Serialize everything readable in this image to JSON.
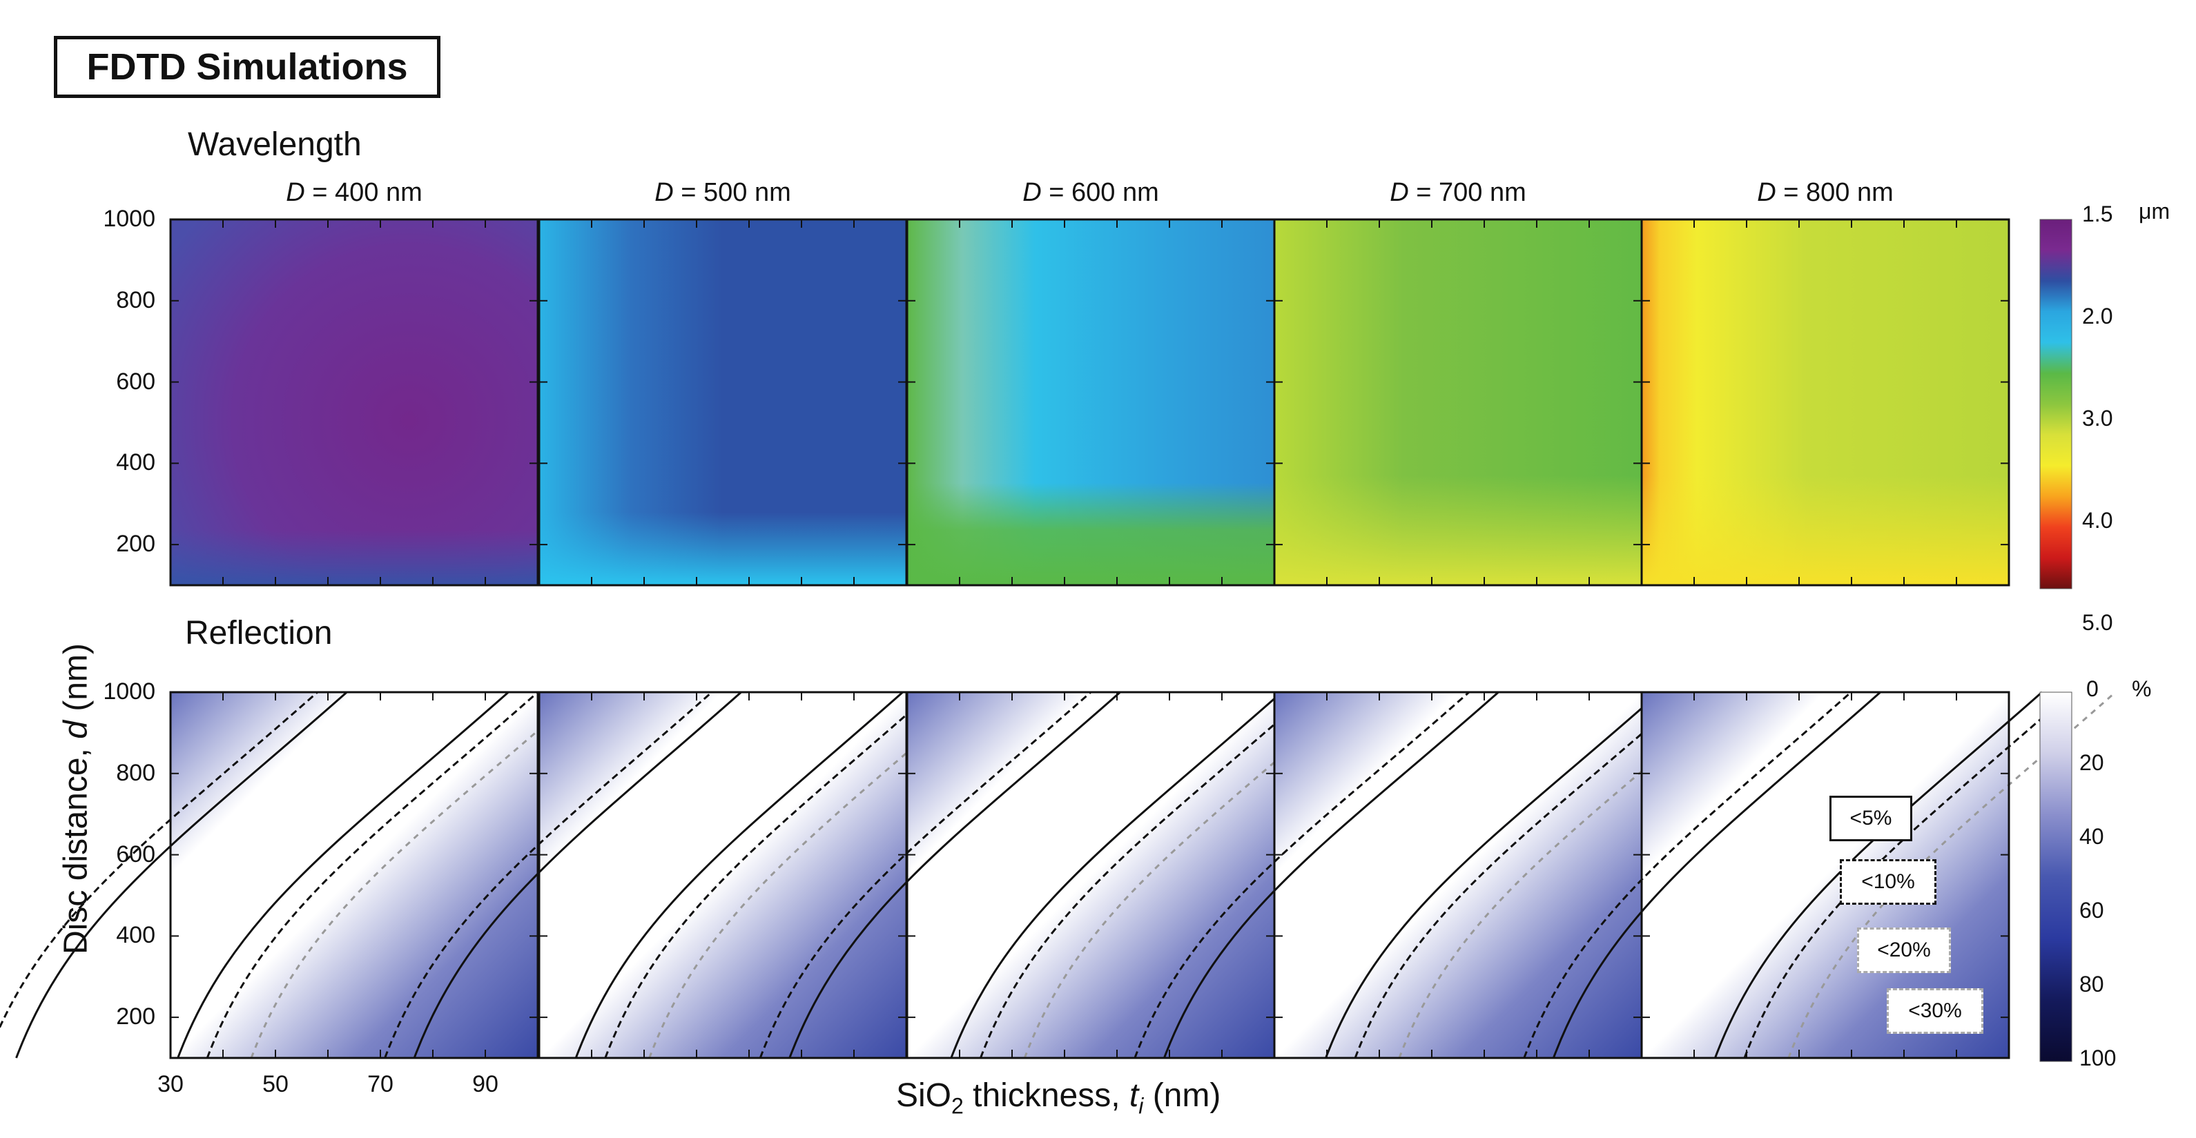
{
  "figure_title": "FDTD Simulations",
  "rows": {
    "top_label": "Wavelength",
    "bottom_label": "Reflection"
  },
  "panels": [
    {
      "symbol": "D",
      "text": " = 400 nm"
    },
    {
      "symbol": "D",
      "text": " = 500 nm"
    },
    {
      "symbol": "D",
      "text": " = 600 nm"
    },
    {
      "symbol": "D",
      "text": " = 700 nm"
    },
    {
      "symbol": "D",
      "text": " = 800 nm"
    }
  ],
  "y_axis": {
    "label_text": "Disc distance, ",
    "label_symbol": "d",
    "label_unit": " (nm)",
    "ticks": [
      "1000",
      "800",
      "600",
      "400",
      "200"
    ],
    "ylim": [
      100,
      1000
    ]
  },
  "x_axis": {
    "label_pre": "SiO",
    "label_sub": "2",
    "label_mid": " thickness, ",
    "label_symbol": "t",
    "label_symbol_sub": "i",
    "label_unit": " (nm)",
    "ticks": [
      "30",
      "50",
      "70",
      "90"
    ],
    "xlim": [
      30,
      100
    ]
  },
  "colorbars": {
    "wavelength": {
      "unit": "μm",
      "ticks": [
        "1.5",
        "2.0",
        "3.0",
        "4.0",
        "5.0"
      ],
      "stops": [
        "#6b1f7c",
        "#7a2a90",
        "#2e4fa2",
        "#2ba6e0",
        "#2fc0e8",
        "#5ab947",
        "#8cc63f",
        "#d8e03a",
        "#f5ec2c",
        "#f8a51e",
        "#f0421e",
        "#cc1a1a",
        "#6b1010"
      ]
    },
    "reflection": {
      "unit": "%",
      "ticks": [
        "0",
        "20",
        "40",
        "60",
        "80",
        "100"
      ],
      "stops": [
        "#ffffff",
        "#cfcfe8",
        "#8a8fcc",
        "#4858b0",
        "#2b3aa0",
        "#141a5c",
        "#0a0a30"
      ]
    }
  },
  "legend": [
    "<5%",
    "<10%",
    "<20%",
    "<30%"
  ],
  "chart_data": [
    {
      "type": "heatmap",
      "title": "Wavelength",
      "quantity": "resonance wavelength (μm)",
      "xlabel": "SiO2 thickness, t_i (nm)",
      "ylabel": "Disc distance, d (nm)",
      "xlim": [
        30,
        100
      ],
      "ylim": [
        100,
        1000
      ],
      "panels": [
        {
          "D": "400 nm",
          "approx_wavelength_um": 1.7
        },
        {
          "D": "500 nm",
          "approx_wavelength_um": 2.1
        },
        {
          "D": "600 nm",
          "approx_wavelength_um": 2.4
        },
        {
          "D": "700 nm",
          "approx_wavelength_um": 2.85
        },
        {
          "D": "800 nm",
          "approx_wavelength_um": 3.0
        }
      ],
      "colorbar_range": [
        1.5,
        5.0
      ]
    },
    {
      "type": "heatmap",
      "title": "Reflection",
      "quantity": "reflection (%)",
      "xlabel": "SiO2 thickness, t_i (nm)",
      "ylabel": "Disc distance, d (nm)",
      "xlim": [
        30,
        100
      ],
      "ylim": [
        100,
        1000
      ],
      "contours": [
        "<5%",
        "<10%",
        "<20%",
        "<30%"
      ],
      "colorbar_range": [
        0,
        100
      ]
    }
  ]
}
